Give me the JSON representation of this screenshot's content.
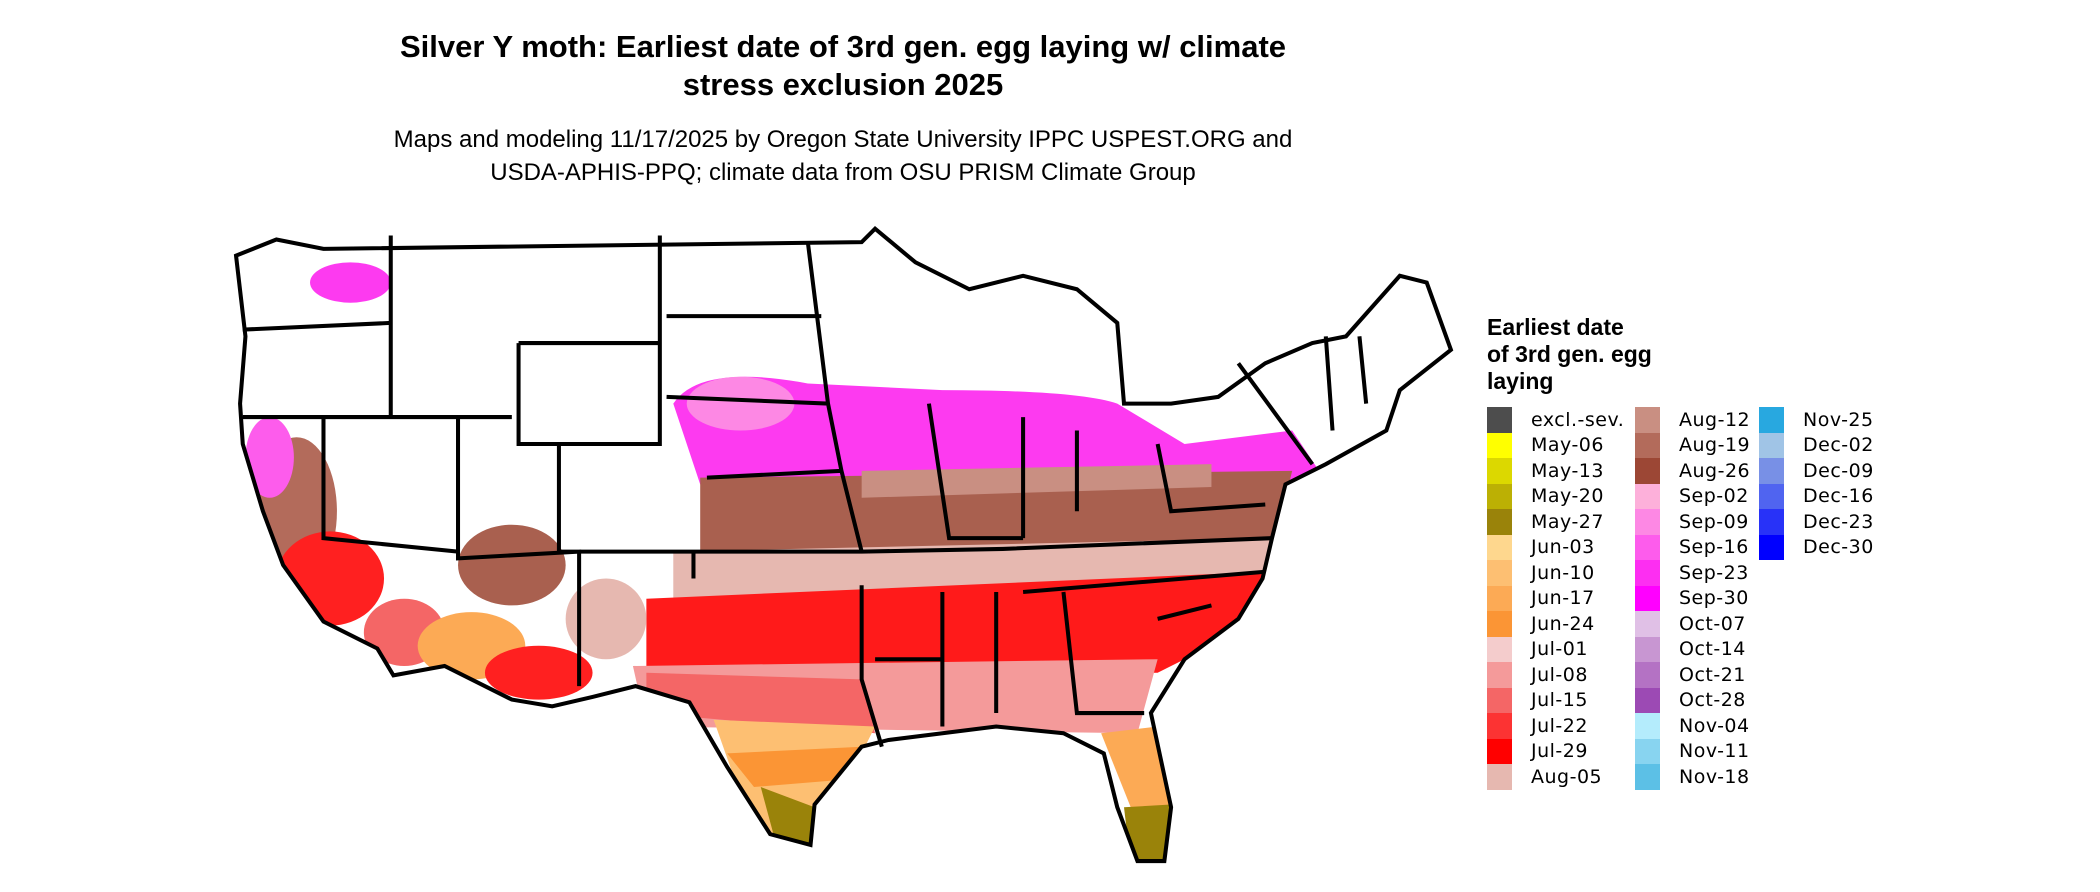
{
  "title_line1": "Silver Y moth: Earliest date of 3rd gen. egg laying w/ climate",
  "title_line2": "stress exclusion 2025",
  "subtitle_line1": "Maps and modeling 11/17/2025 by Oregon State University IPPC USPEST.ORG and",
  "subtitle_line2": "USDA-APHIS-PPQ; climate data from OSU PRISM Climate Group",
  "legend": {
    "title_line1": "Earliest date",
    "title_line2": "of 3rd gen. egg",
    "title_line3": "laying",
    "columns": [
      [
        {
          "label": "excl.-sev.",
          "color": "#4d4d4d"
        },
        {
          "label": "May-06",
          "color": "#ffff00"
        },
        {
          "label": "May-13",
          "color": "#dcd800"
        },
        {
          "label": "May-20",
          "color": "#bcb004"
        },
        {
          "label": "May-27",
          "color": "#9a830a"
        },
        {
          "label": "Jun-03",
          "color": "#fed78e"
        },
        {
          "label": "Jun-10",
          "color": "#fdbf72"
        },
        {
          "label": "Jun-17",
          "color": "#fcaa55"
        },
        {
          "label": "Jun-24",
          "color": "#fb9535"
        },
        {
          "label": "Jul-01",
          "color": "#f4cccc"
        },
        {
          "label": "Jul-08",
          "color": "#f49a9a"
        },
        {
          "label": "Jul-15",
          "color": "#f46666"
        },
        {
          "label": "Jul-22",
          "color": "#fc3333"
        },
        {
          "label": "Jul-29",
          "color": "#ff0000"
        },
        {
          "label": "Aug-05",
          "color": "#e6b8b0"
        }
      ],
      [
        {
          "label": "Aug-12",
          "color": "#c98f82"
        },
        {
          "label": "Aug-19",
          "color": "#b36b5b"
        },
        {
          "label": "Aug-26",
          "color": "#9c4735"
        },
        {
          "label": "Sep-02",
          "color": "#fdb0da"
        },
        {
          "label": "Sep-09",
          "color": "#fd88e4"
        },
        {
          "label": "Sep-16",
          "color": "#fd5cec"
        },
        {
          "label": "Sep-23",
          "color": "#fd2ef2"
        },
        {
          "label": "Sep-30",
          "color": "#ff00ff"
        },
        {
          "label": "Oct-07",
          "color": "#e0c0e6"
        },
        {
          "label": "Oct-14",
          "color": "#c896d2"
        },
        {
          "label": "Oct-21",
          "color": "#b472c4"
        },
        {
          "label": "Oct-28",
          "color": "#9c4ab4"
        },
        {
          "label": "Nov-04",
          "color": "#b4ecfc"
        },
        {
          "label": "Nov-11",
          "color": "#88d4f0"
        },
        {
          "label": "Nov-18",
          "color": "#5cc0e6"
        }
      ],
      [
        {
          "label": "Nov-25",
          "color": "#28a8e0"
        },
        {
          "label": "Dec-02",
          "color": "#a0c4e6"
        },
        {
          "label": "Dec-09",
          "color": "#7890e6"
        },
        {
          "label": "Dec-16",
          "color": "#5064f0"
        },
        {
          "label": "Dec-23",
          "color": "#2832f8"
        },
        {
          "label": "Dec-30",
          "color": "#0000ff"
        }
      ]
    ]
  }
}
